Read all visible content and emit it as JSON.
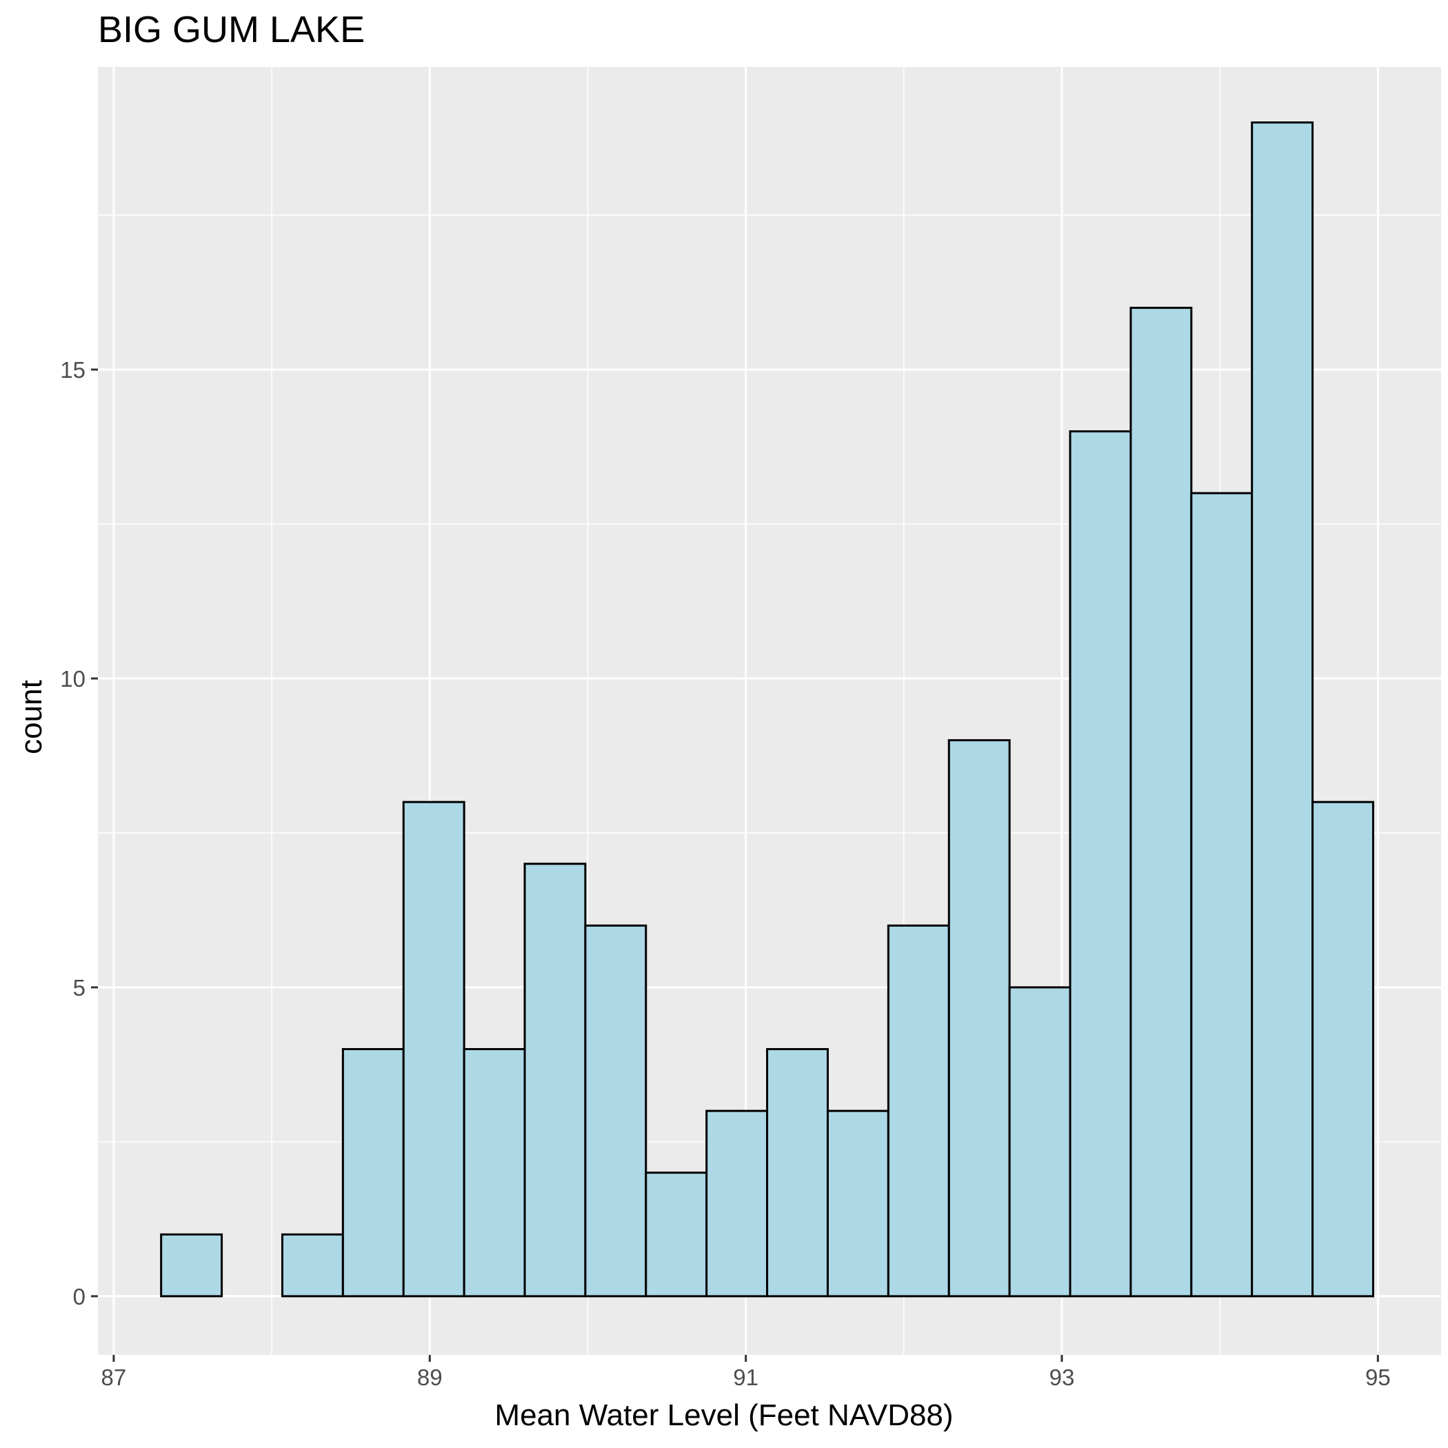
{
  "chart_data": {
    "type": "bar",
    "title": "BIG GUM LAKE",
    "xlabel": "Mean Water Level (Feet NAVD88)",
    "ylabel": "count",
    "xlim": [
      86.9,
      95.4
    ],
    "ylim": [
      -0.95,
      19.9
    ],
    "x_ticks": [
      87,
      89,
      91,
      93,
      95
    ],
    "y_ticks": [
      0,
      5,
      10,
      15
    ],
    "grid": true,
    "bin_width": 0.3835,
    "bins": [
      {
        "x0": 87.3,
        "x1": 87.6835,
        "count": 1
      },
      {
        "x0": 87.6835,
        "x1": 88.067,
        "count": 0
      },
      {
        "x0": 88.067,
        "x1": 88.4505,
        "count": 1
      },
      {
        "x0": 88.4505,
        "x1": 88.834,
        "count": 4
      },
      {
        "x0": 88.834,
        "x1": 89.2175,
        "count": 8
      },
      {
        "x0": 89.2175,
        "x1": 89.601,
        "count": 4
      },
      {
        "x0": 89.601,
        "x1": 89.9845,
        "count": 7
      },
      {
        "x0": 89.9845,
        "x1": 90.368,
        "count": 6
      },
      {
        "x0": 90.368,
        "x1": 90.7515,
        "count": 2
      },
      {
        "x0": 90.7515,
        "x1": 91.135,
        "count": 3
      },
      {
        "x0": 91.135,
        "x1": 91.5185,
        "count": 4
      },
      {
        "x0": 91.5185,
        "x1": 91.902,
        "count": 3
      },
      {
        "x0": 91.902,
        "x1": 92.2855,
        "count": 6
      },
      {
        "x0": 92.2855,
        "x1": 92.669,
        "count": 9
      },
      {
        "x0": 92.669,
        "x1": 93.0525,
        "count": 5
      },
      {
        "x0": 93.0525,
        "x1": 93.436,
        "count": 14
      },
      {
        "x0": 93.436,
        "x1": 93.8195,
        "count": 16
      },
      {
        "x0": 93.8195,
        "x1": 94.203,
        "count": 13
      },
      {
        "x0": 94.203,
        "x1": 94.5865,
        "count": 19
      },
      {
        "x0": 94.5865,
        "x1": 94.97,
        "count": 8
      }
    ],
    "colors": {
      "bar_fill": "#add8e6",
      "bar_stroke": "#000000",
      "panel_background": "#ebebeb",
      "grid": "#ffffff"
    }
  }
}
